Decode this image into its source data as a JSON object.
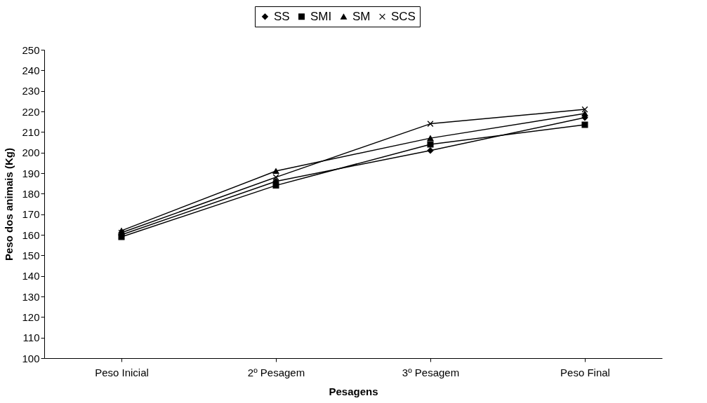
{
  "chart_data": {
    "type": "line",
    "xlabel": "Pesagens",
    "ylabel": "Peso dos animais (Kg)",
    "categories": [
      "Peso Inicial",
      "2º Pesagem",
      "3º Pesagem",
      "Peso Final"
    ],
    "series": [
      {
        "name": "SS",
        "color": "#000000",
        "marker": "diamond",
        "values": [
          160,
          186,
          201,
          217
        ]
      },
      {
        "name": "SMI",
        "color": "#000000",
        "marker": "square",
        "values": [
          159,
          184,
          204,
          213.5
        ]
      },
      {
        "name": "SM",
        "color": "#000000",
        "marker": "triangle",
        "values": [
          162,
          191,
          207,
          219
        ]
      },
      {
        "name": "SCS",
        "color": "#000000",
        "marker": "cross",
        "values": [
          161,
          188,
          214,
          221
        ]
      }
    ],
    "ylim": [
      100,
      250
    ],
    "yticks": [
      100,
      110,
      120,
      130,
      140,
      150,
      160,
      170,
      180,
      190,
      200,
      210,
      220,
      230,
      240,
      250
    ],
    "grid": false,
    "legend": "top"
  }
}
